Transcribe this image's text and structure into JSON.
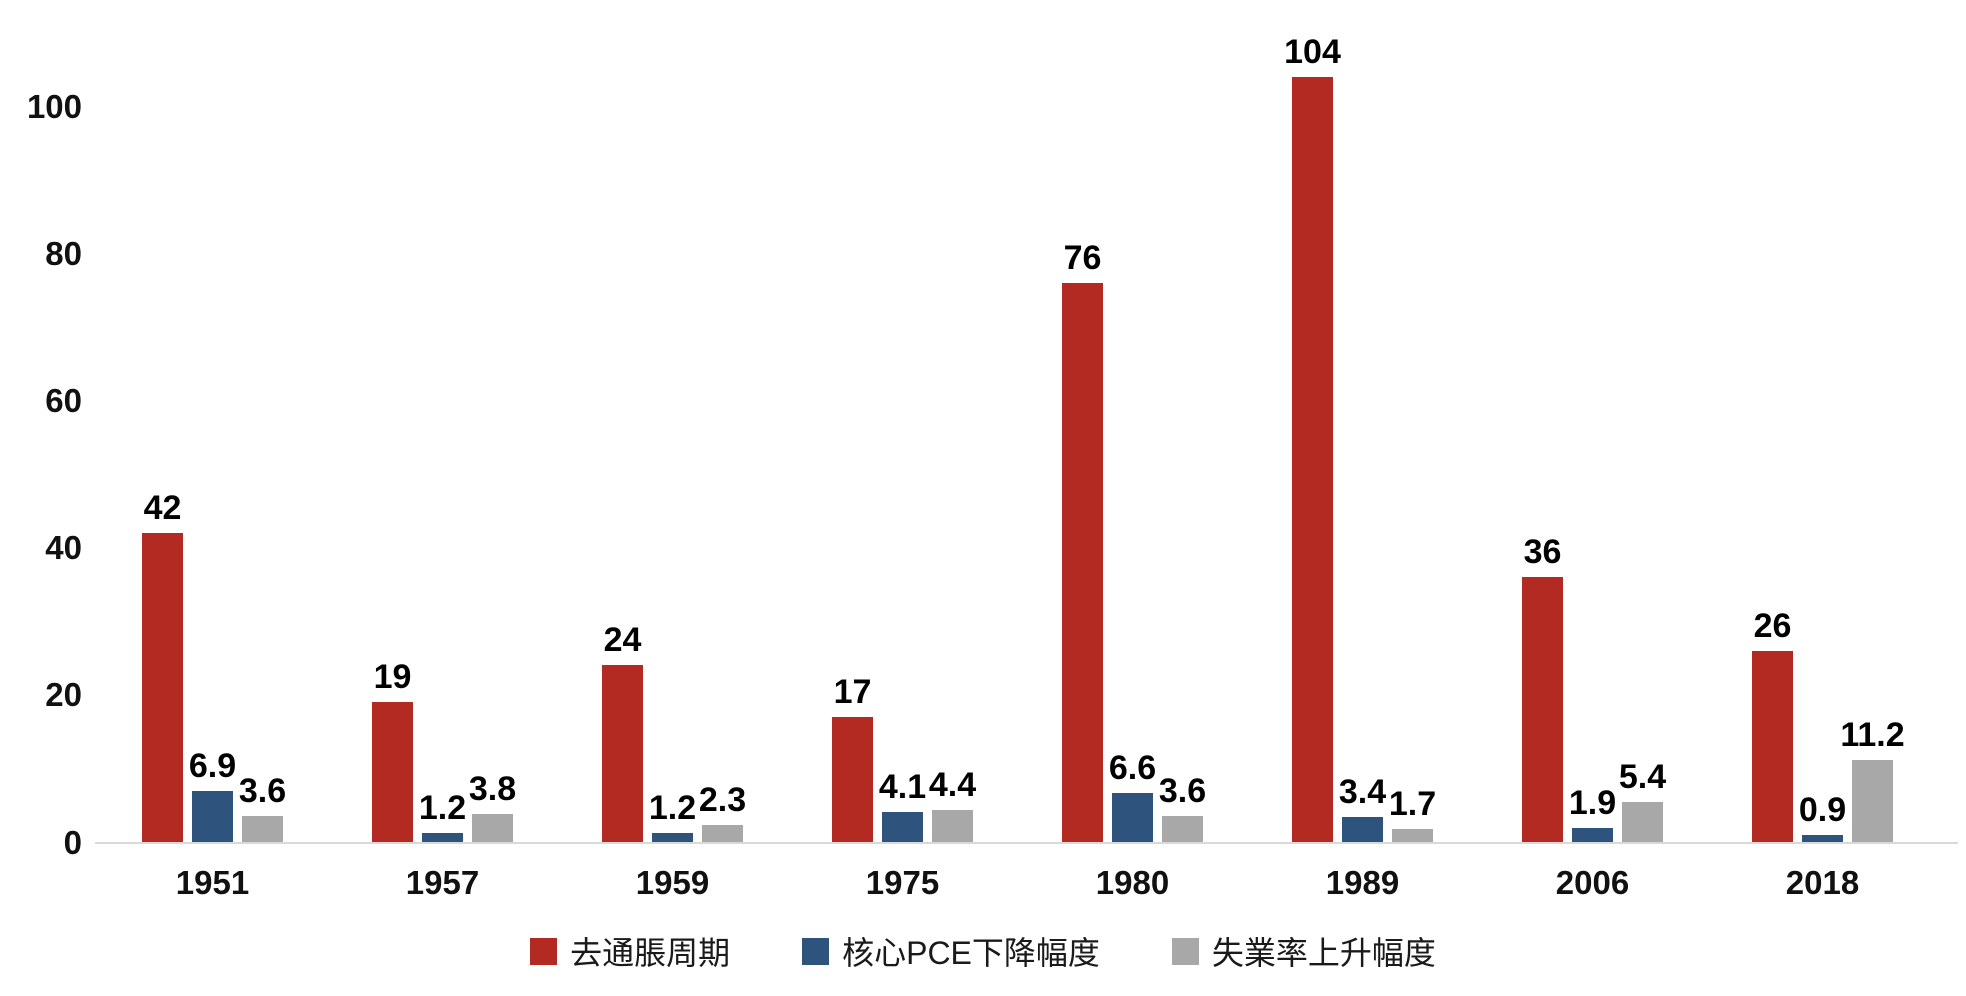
{
  "chart_data": {
    "type": "bar",
    "categories": [
      "1951",
      "1957",
      "1959",
      "1975",
      "1980",
      "1989",
      "2006",
      "2018"
    ],
    "series": [
      {
        "key": "deflation-cycle",
        "name": "去通脹周期",
        "color": "#b22a21",
        "values": [
          42,
          19,
          24,
          17,
          76,
          104,
          36,
          26
        ]
      },
      {
        "key": "core-pce-decline",
        "name": "核心PCE下降幅度",
        "color": "#2e547e",
        "values": [
          6.9,
          1.2,
          1.2,
          4.1,
          6.6,
          3.4,
          1.9,
          0.9
        ]
      },
      {
        "key": "unemployment-rise",
        "name": "失業率上升幅度",
        "color": "#a8a8a8",
        "values": [
          3.6,
          3.8,
          2.3,
          4.4,
          3.6,
          1.7,
          5.4,
          11.2
        ]
      }
    ],
    "yticks": [
      0,
      20,
      40,
      60,
      80,
      100
    ],
    "ylim": [
      0,
      110
    ],
    "grid": false,
    "data_labels": true,
    "legend_position": "bottom",
    "background_color": "#ffffff",
    "axis_line_color": "#d9d9d9",
    "text_color": "#111111"
  }
}
